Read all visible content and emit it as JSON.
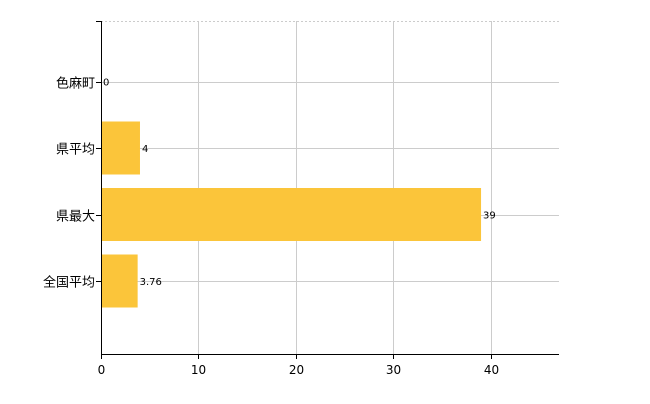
{
  "chart_data": {
    "type": "bar",
    "orientation": "horizontal",
    "categories": [
      "色麻町",
      "県平均",
      "県最大",
      "全国平均"
    ],
    "values": [
      0,
      4,
      39,
      3.76
    ],
    "value_labels": [
      "0",
      "4",
      "39",
      "3.76"
    ],
    "xlim": [
      0,
      47
    ],
    "xticks": [
      0,
      10,
      20,
      30,
      40
    ],
    "grid": true,
    "legend": "none"
  },
  "colors": {
    "bar": "#FBC53A",
    "grid": "#CCCCCC",
    "axis": "#000000"
  }
}
